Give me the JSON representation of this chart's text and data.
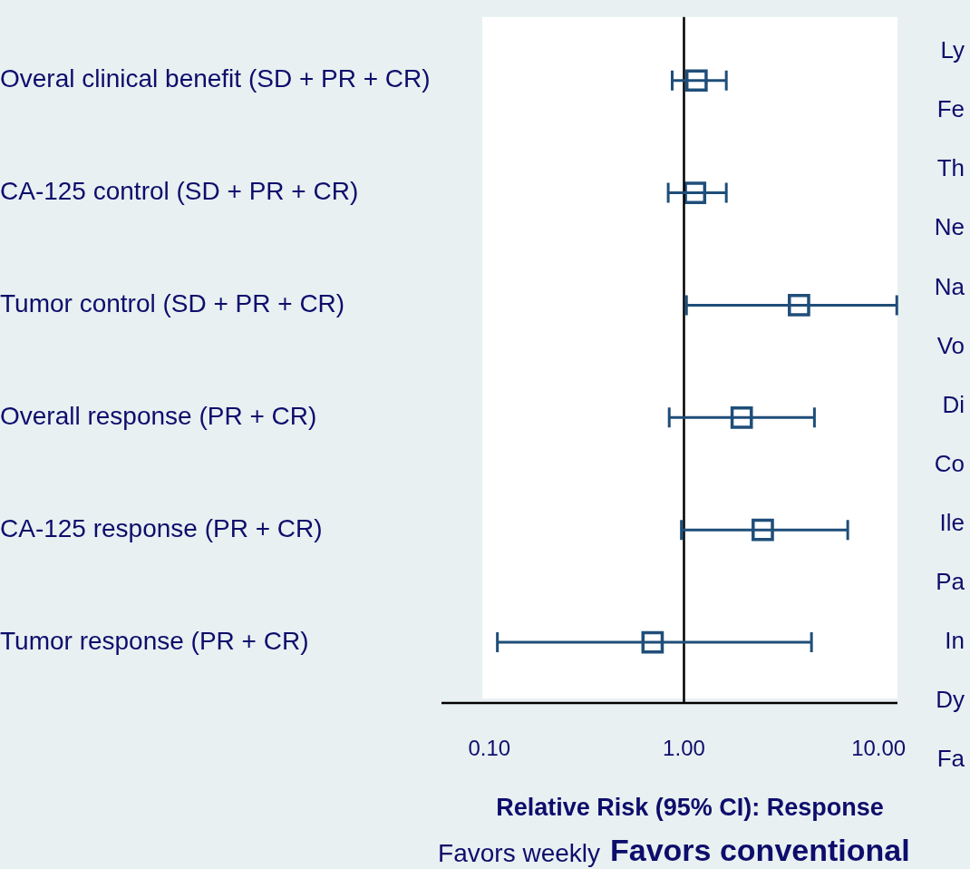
{
  "chart_data": {
    "type": "scatter",
    "orientation": "horizontal",
    "xlabel": "Relative Risk (95% CI): Response",
    "categories": [
      "Overal clinical benefit (SD + PR + CR)",
      "CA-125 control (SD + PR + CR)",
      "Tumor control (SD + PR + CR)",
      "Overall response (PR + CR)",
      "CA-125 response (PR + CR)",
      "Tumor response (PR + CR)"
    ],
    "values": [
      1.16,
      1.14,
      3.9,
      1.98,
      2.54,
      0.69
    ],
    "errors": [
      [
        0.87,
        1.65
      ],
      [
        0.83,
        1.65
      ],
      [
        1.03,
        12.4
      ],
      [
        0.84,
        4.68
      ],
      [
        0.97,
        6.94
      ],
      [
        0.11,
        4.52
      ]
    ],
    "color": "#1f4e79",
    "marker": "square",
    "log": "x",
    "grid": false,
    "legend": false,
    "xlim": [
      0.092,
      12.5
    ],
    "xticks": [
      {
        "value": 0.1,
        "label": "0.10"
      },
      {
        "value": 1,
        "label": "1.00"
      },
      {
        "value": 10,
        "label": "10.00"
      }
    ],
    "ref_lines": [
      {
        "axis": "x",
        "value": 1,
        "color": "#000000"
      }
    ],
    "annotations": [
      "Favors weekly",
      "Favors conventional",
      "Ly",
      "Fe",
      "Th",
      "Ne",
      "Na",
      "Vo",
      "Di",
      "Co",
      "Ile",
      "Pa",
      "In",
      "Dy",
      "Fa"
    ]
  }
}
